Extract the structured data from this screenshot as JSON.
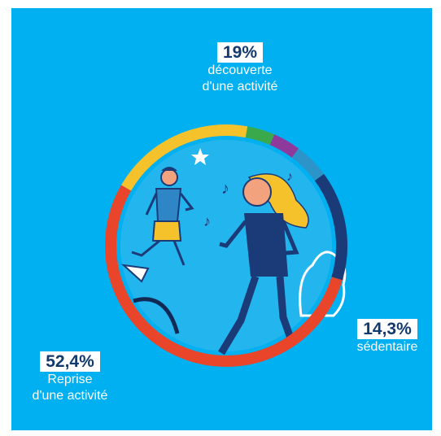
{
  "chart_data": {
    "type": "pie",
    "style": "donut ring around an illustration of two people running",
    "slices": [
      {
        "label_line1": "découverte",
        "label_line2": "d'une activité",
        "value_text": "19%",
        "value": 19,
        "color": "#f6c22b"
      },
      {
        "value": 3.6,
        "color": "#3aa94b"
      },
      {
        "value": 3.6,
        "color": "#8e3a9c"
      },
      {
        "value": 4.6,
        "color": "#2c94c8"
      },
      {
        "label_line1": "sédentaire",
        "label_line2": "",
        "value_text": "14,3%",
        "value": 14.3,
        "color": "#1b3a78"
      },
      {
        "label_line1": "Reprise",
        "label_line2": "d'une activité",
        "value_text": "52,4%",
        "value": 52.4,
        "color": "#e8452a"
      }
    ]
  },
  "colors": {
    "background": "#00b0f0",
    "badge_text": "#123a6e",
    "illustration_bg": "#23b6ee",
    "navy": "#1b3a78"
  }
}
